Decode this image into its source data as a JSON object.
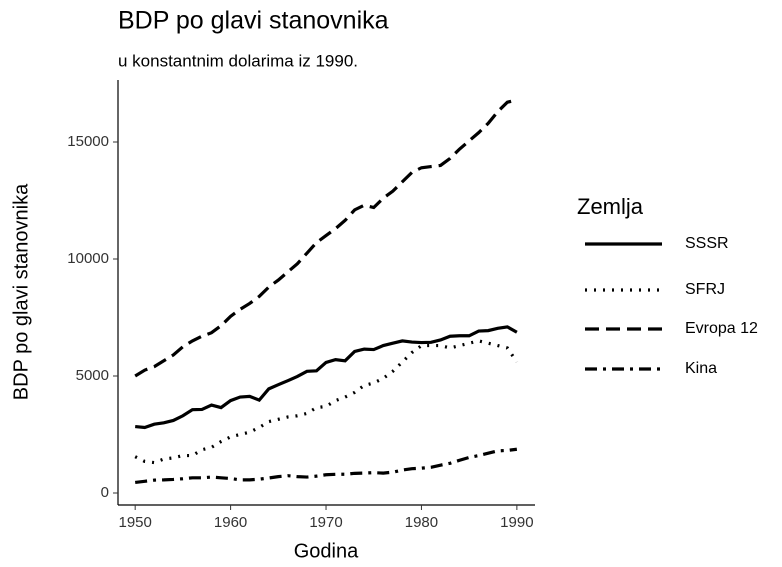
{
  "chart_data": {
    "type": "line",
    "title": "BDP po glavi stanovnika",
    "subtitle": "u konstantnim dolarima iz 1990.",
    "x_label": "Godina",
    "y_label": "BDP po glavi stanovnika",
    "legend_title": "Zemlja",
    "legend": "right",
    "grid": false,
    "x": [
      1950,
      1951,
      1952,
      1953,
      1954,
      1955,
      1956,
      1957,
      1958,
      1959,
      1960,
      1961,
      1962,
      1963,
      1964,
      1965,
      1966,
      1967,
      1968,
      1969,
      1970,
      1971,
      1972,
      1973,
      1974,
      1975,
      1976,
      1977,
      1978,
      1979,
      1980,
      1981,
      1982,
      1983,
      1984,
      1985,
      1986,
      1987,
      1988,
      1989,
      1990
    ],
    "series": [
      {
        "name": "SSSR",
        "color": "#000000",
        "linestyle": "solid",
        "values": [
          2840,
          2800,
          2940,
          3000,
          3100,
          3300,
          3560,
          3570,
          3760,
          3650,
          3950,
          4100,
          4130,
          3970,
          4450,
          4630,
          4800,
          4980,
          5200,
          5220,
          5580,
          5700,
          5650,
          6050,
          6150,
          6130,
          6300,
          6400,
          6500,
          6450,
          6430,
          6440,
          6540,
          6700,
          6720,
          6720,
          6920,
          6940,
          7040,
          7100,
          6870
        ]
      },
      {
        "name": "SFRJ",
        "color": "#000000",
        "linestyle": "dotted",
        "values": [
          1550,
          1350,
          1300,
          1450,
          1500,
          1600,
          1600,
          1850,
          1950,
          2200,
          2400,
          2500,
          2600,
          2800,
          3050,
          3150,
          3250,
          3300,
          3400,
          3650,
          3700,
          3950,
          4100,
          4300,
          4600,
          4700,
          4900,
          5200,
          5600,
          6000,
          6300,
          6300,
          6300,
          6200,
          6300,
          6400,
          6500,
          6400,
          6300,
          6200,
          5600
        ]
      },
      {
        "name": "Evropa 12",
        "color": "#000000",
        "linestyle": "dashed",
        "values": [
          5000,
          5250,
          5400,
          5650,
          5900,
          6250,
          6500,
          6700,
          6850,
          7150,
          7550,
          7850,
          8100,
          8400,
          8800,
          9100,
          9450,
          9800,
          10250,
          10700,
          11000,
          11300,
          11650,
          12100,
          12300,
          12200,
          12600,
          12900,
          13300,
          13700,
          13900,
          13950,
          14000,
          14300,
          14700,
          15050,
          15400,
          15800,
          16300,
          16700,
          16800
        ]
      },
      {
        "name": "Kina",
        "color": "#000000",
        "linestyle": "dashdot",
        "values": [
          450,
          500,
          550,
          560,
          580,
          610,
          650,
          650,
          680,
          650,
          620,
          560,
          560,
          590,
          640,
          700,
          740,
          700,
          680,
          720,
          780,
          800,
          800,
          840,
          850,
          870,
          850,
          890,
          980,
          1040,
          1060,
          1100,
          1190,
          1270,
          1400,
          1520,
          1600,
          1700,
          1800,
          1820,
          1870
        ]
      }
    ],
    "xlim": [
      1948.2,
      1991.9
    ],
    "xticks": [
      1950,
      1960,
      1970,
      1980,
      1990
    ],
    "ylim": [
      -513,
      17650
    ],
    "yticks": [
      0,
      5000,
      10000,
      15000
    ]
  }
}
